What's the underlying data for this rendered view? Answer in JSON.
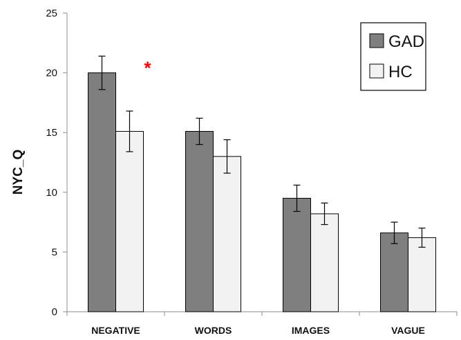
{
  "chart_data": {
    "type": "bar",
    "ylabel": "NYC_Q",
    "xlabel": "",
    "ylim": [
      0,
      25
    ],
    "yticks": [
      0,
      5,
      10,
      15,
      20,
      25
    ],
    "grid": false,
    "legend_position": "top-right",
    "categories": [
      "NEGATIVE",
      "WORDS",
      "IMAGES",
      "VAGUE"
    ],
    "series": [
      {
        "name": "GAD",
        "color": "#7f7f7f",
        "values": [
          20.0,
          15.1,
          9.5,
          6.6
        ],
        "errors": [
          1.4,
          1.1,
          1.1,
          0.9
        ]
      },
      {
        "name": "HC",
        "color": "#f2f2f2",
        "values": [
          15.1,
          13.0,
          8.2,
          6.2
        ],
        "errors": [
          1.7,
          1.4,
          0.9,
          0.8
        ]
      }
    ],
    "annotations": [
      {
        "text": "*",
        "category": "NEGATIVE",
        "color": "#ff0000"
      }
    ]
  }
}
